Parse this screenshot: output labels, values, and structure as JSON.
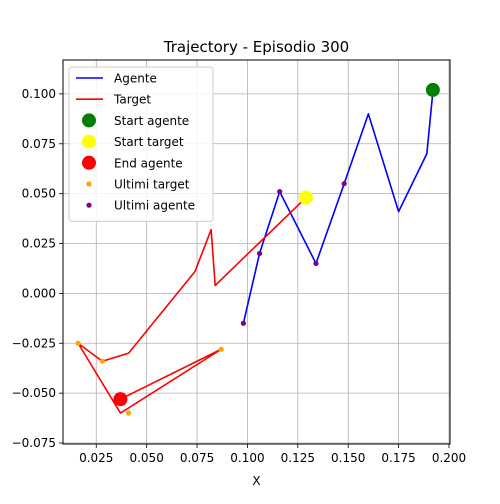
{
  "chart_data": {
    "type": "line",
    "title": "Trajectory - Episodio 300",
    "xlabel": "X",
    "ylabel": "",
    "xlim": [
      0.0085,
      0.2005
    ],
    "ylim": [
      -0.0755,
      0.117
    ],
    "grid": true,
    "legend_position": "top-left",
    "xticks": [
      0.025,
      0.05,
      0.075,
      0.1,
      0.125,
      0.15,
      0.175,
      0.2
    ],
    "xtick_labels": [
      "0.025",
      "0.050",
      "0.075",
      "0.100",
      "0.125",
      "0.150",
      "0.175",
      "0.200"
    ],
    "yticks": [
      -0.075,
      -0.05,
      -0.025,
      0.0,
      0.025,
      0.05,
      0.075,
      0.1
    ],
    "ytick_labels": [
      "−0.075",
      "−0.050",
      "−0.025",
      "0.000",
      "0.025",
      "0.050",
      "0.075",
      "0.100"
    ],
    "series": [
      {
        "name": "Agente",
        "kind": "line",
        "color": "#0000ff",
        "x": [
          0.192,
          0.189,
          0.175,
          0.16,
          0.148,
          0.134,
          0.116,
          0.106,
          0.098
        ],
        "y": [
          0.101,
          0.07,
          0.041,
          0.09,
          0.055,
          0.015,
          0.051,
          0.02,
          -0.015
        ]
      },
      {
        "name": "Target",
        "kind": "line",
        "color": "#ff0000",
        "x": [
          0.129,
          0.084,
          0.082,
          0.074,
          0.041,
          0.028,
          0.016,
          0.037,
          0.087,
          0.037
        ],
        "y": [
          0.048,
          0.004,
          0.032,
          0.011,
          -0.03,
          -0.034,
          -0.025,
          -0.06,
          -0.028,
          -0.053
        ]
      },
      {
        "name": "Start agente",
        "kind": "marker",
        "color": "#008000",
        "x": [
          0.192
        ],
        "y": [
          0.102
        ]
      },
      {
        "name": "Start target",
        "kind": "marker",
        "color": "#ffff00",
        "x": [
          0.129
        ],
        "y": [
          0.048
        ]
      },
      {
        "name": "End agente",
        "kind": "marker",
        "color": "#ff0000",
        "x": [
          0.037
        ],
        "y": [
          -0.053
        ]
      },
      {
        "name": "Ultimi target",
        "kind": "scatter",
        "color": "#ffa500",
        "x": [
          0.016,
          0.028,
          0.041,
          0.087
        ],
        "y": [
          -0.025,
          -0.034,
          -0.06,
          -0.028
        ]
      },
      {
        "name": "Ultimi agente",
        "kind": "scatter",
        "color": "#800080",
        "x": [
          0.148,
          0.134,
          0.116,
          0.106,
          0.098
        ],
        "y": [
          0.055,
          0.015,
          0.051,
          0.02,
          -0.015
        ]
      }
    ]
  }
}
